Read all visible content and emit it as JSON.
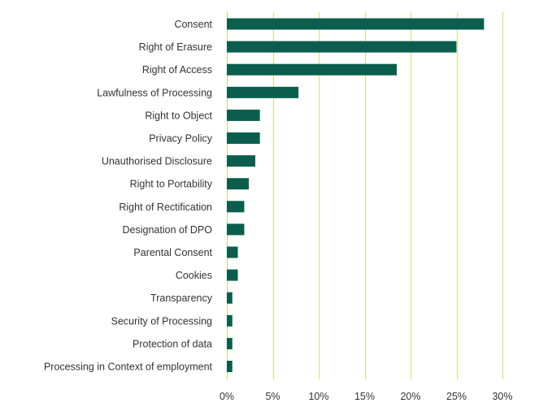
{
  "chart_data": {
    "type": "bar",
    "orientation": "horizontal",
    "title": "",
    "xlabel": "",
    "ylabel": "",
    "categories": [
      "Consent",
      "Right of Erasure",
      "Right of Access",
      "Lawfulness of Processing",
      "Right to Object",
      "Privacy Policy",
      "Unauthorised Disclosure",
      "Right to Portability",
      "Right of Rectification",
      "Designation of DPO",
      "Parental Consent",
      "Cookies",
      "Transparency",
      "Security of Processing",
      "Protection of data",
      "Processing in Context of employment"
    ],
    "values": [
      28.0,
      25.0,
      18.5,
      7.8,
      3.6,
      3.6,
      3.1,
      2.4,
      1.9,
      1.9,
      1.2,
      1.2,
      0.6,
      0.6,
      0.6,
      0.6
    ],
    "xlim": [
      0,
      30
    ],
    "ticks": [
      0,
      5,
      10,
      15,
      20,
      25,
      30
    ],
    "tick_labels": [
      "0%",
      "5%",
      "10%",
      "15%",
      "20%",
      "25%",
      "30%"
    ],
    "grid": "vertical",
    "legend": "none",
    "colors": {
      "bar": "#0b5e4d",
      "grid": "#d4df7a"
    }
  }
}
